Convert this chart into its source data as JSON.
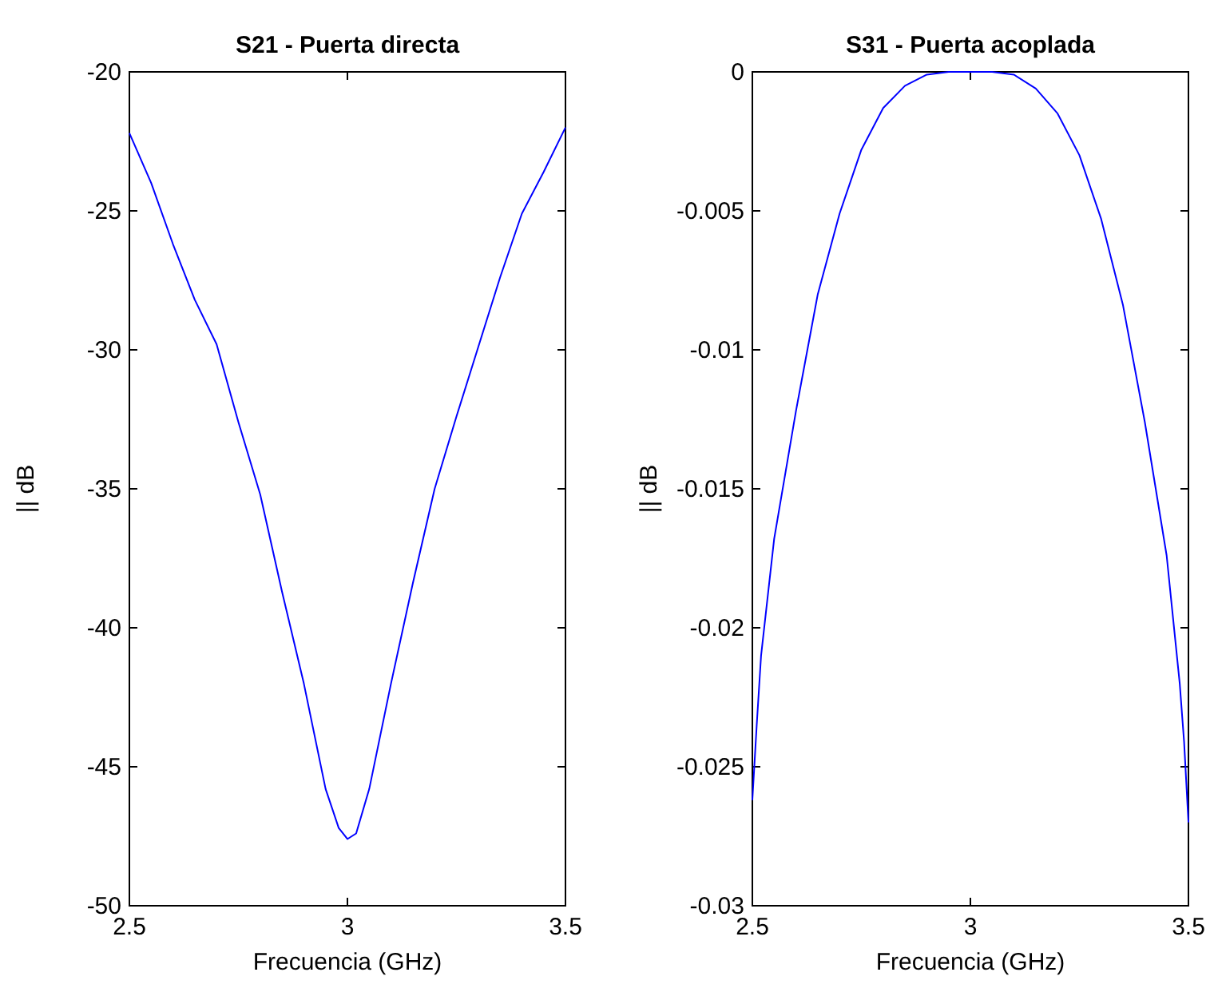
{
  "chart_data": [
    {
      "type": "line",
      "title": "S21 - Puerta directa",
      "xlabel": "Frecuencia (GHz)",
      "ylabel": "|| dB",
      "xlim": [
        2.5,
        3.5
      ],
      "xticks": [
        2.5,
        3,
        3.5
      ],
      "ylim": [
        -50,
        -20
      ],
      "yticks": [
        -50,
        -45,
        -40,
        -35,
        -30,
        -25,
        -20
      ],
      "series": [
        {
          "color": "#0000ff",
          "x": [
            2.5,
            2.55,
            2.6,
            2.65,
            2.7,
            2.75,
            2.8,
            2.85,
            2.9,
            2.95,
            2.98,
            3.0,
            3.02,
            3.05,
            3.1,
            3.15,
            3.2,
            3.25,
            3.3,
            3.35,
            3.4,
            3.45,
            3.5
          ],
          "values": [
            -22.2,
            -24.0,
            -26.2,
            -28.2,
            -29.8,
            -32.6,
            -35.2,
            -38.7,
            -42.0,
            -45.8,
            -47.2,
            -47.6,
            -47.4,
            -45.8,
            -42.0,
            -38.4,
            -35.0,
            -32.4,
            -29.9,
            -27.4,
            -25.1,
            -23.6,
            -22.0
          ]
        }
      ]
    },
    {
      "type": "line",
      "title": "S31 - Puerta acoplada",
      "xlabel": "Frecuencia (GHz)",
      "ylabel": "|| dB",
      "xlim": [
        2.5,
        3.5
      ],
      "xticks": [
        2.5,
        3,
        3.5
      ],
      "ylim": [
        -0.03,
        0
      ],
      "yticks": [
        -0.03,
        -0.025,
        -0.02,
        -0.015,
        -0.01,
        -0.005,
        0
      ],
      "series": [
        {
          "color": "#0000ff",
          "x": [
            2.5,
            2.51,
            2.52,
            2.55,
            2.6,
            2.65,
            2.7,
            2.75,
            2.8,
            2.85,
            2.9,
            2.95,
            3.0,
            3.05,
            3.1,
            3.15,
            3.2,
            3.25,
            3.3,
            3.35,
            3.4,
            3.45,
            3.48,
            3.49,
            3.5
          ],
          "values": [
            -0.0262,
            -0.0235,
            -0.021,
            -0.0168,
            -0.0122,
            -0.008,
            -0.0051,
            -0.0028,
            -0.0013,
            -0.0005,
            -0.0001,
            0,
            0,
            0,
            -0.0001,
            -0.0006,
            -0.0015,
            -0.003,
            -0.0053,
            -0.0084,
            -0.0126,
            -0.0174,
            -0.022,
            -0.0241,
            -0.027
          ]
        }
      ]
    }
  ]
}
